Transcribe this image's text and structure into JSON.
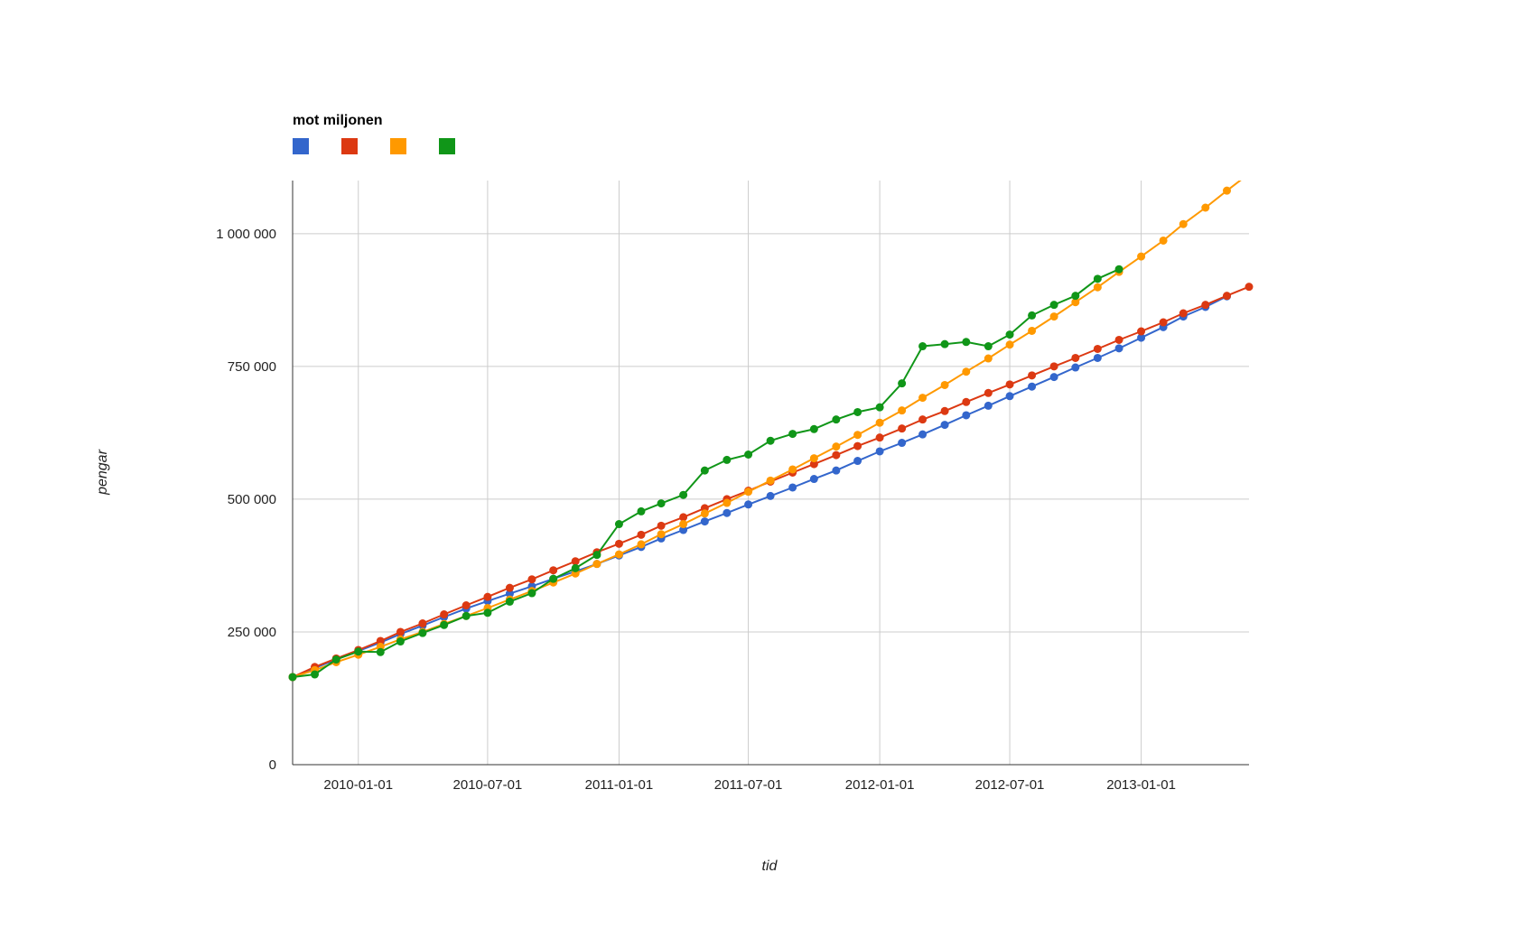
{
  "chart_data": {
    "type": "line",
    "title": "",
    "legend_title": "mot miljonen",
    "legend_placement": "top-left",
    "xlabel": "tid",
    "ylabel": "pengar",
    "grid": true,
    "ylim": [
      0,
      1100000
    ],
    "xlim": [
      "2009-10-01",
      "2013-06-01"
    ],
    "x_tick_labels": [
      "2010-01-01",
      "2010-07-01",
      "2011-01-01",
      "2011-07-01",
      "2012-01-01",
      "2012-07-01",
      "2013-01-01"
    ],
    "y_ticks": [
      0,
      250000,
      500000,
      750000,
      1000000
    ],
    "y_tick_labels": [
      "0",
      "250 000",
      "500 000",
      "750 000",
      "1 000 000"
    ],
    "x": [
      "2009-10-01",
      "2009-11-01",
      "2009-12-01",
      "2010-01-01",
      "2010-02-01",
      "2010-03-01",
      "2010-04-01",
      "2010-05-01",
      "2010-06-01",
      "2010-07-01",
      "2010-08-01",
      "2010-09-01",
      "2010-10-01",
      "2010-11-01",
      "2010-12-01",
      "2011-01-01",
      "2011-02-01",
      "2011-03-01",
      "2011-04-01",
      "2011-05-01",
      "2011-06-01",
      "2011-07-01",
      "2011-08-01",
      "2011-09-01",
      "2011-10-01",
      "2011-11-01",
      "2011-12-01",
      "2012-01-01",
      "2012-02-01",
      "2012-03-01",
      "2012-04-01",
      "2012-05-01",
      "2012-06-01",
      "2012-07-01",
      "2012-08-01",
      "2012-09-01",
      "2012-10-01",
      "2012-11-01",
      "2012-12-01",
      "2013-01-01",
      "2013-02-01",
      "2013-03-01",
      "2013-04-01",
      "2013-05-01",
      "2013-06-01"
    ],
    "series": [
      {
        "color": "#3366cc",
        "values": [
          165000,
          182000,
          198000,
          214000,
          230000,
          246000,
          262000,
          278000,
          294000,
          308000,
          322000,
          336000,
          350000,
          364000,
          378000,
          394000,
          410000,
          426000,
          442000,
          458000,
          474000,
          490000,
          506000,
          522000,
          538000,
          554000,
          572000,
          590000,
          606000,
          622000,
          640000,
          658000,
          676000,
          694000,
          712000,
          730000,
          748000,
          766000,
          784000,
          804000,
          824000,
          844000,
          862000,
          882000,
          null
        ]
      },
      {
        "color": "#dc3912",
        "values": [
          165000,
          184000,
          200000,
          216000,
          233000,
          250000,
          266000,
          283000,
          300000,
          316000,
          333000,
          349000,
          366000,
          383000,
          400000,
          416000,
          433000,
          450000,
          466000,
          483000,
          500000,
          516000,
          533000,
          550000,
          566000,
          583000,
          600000,
          616000,
          633000,
          650000,
          666000,
          683000,
          700000,
          716000,
          733000,
          750000,
          766000,
          783000,
          800000,
          816000,
          833000,
          850000,
          866000,
          883000,
          900000
        ]
      },
      {
        "color": "#ff9900",
        "values": [
          165000,
          178000,
          193000,
          207000,
          222000,
          236000,
          250000,
          265000,
          280000,
          295000,
          311000,
          327000,
          343000,
          360000,
          378000,
          396000,
          415000,
          434000,
          453000,
          473000,
          493000,
          514000,
          535000,
          556000,
          577000,
          599000,
          621000,
          644000,
          667000,
          691000,
          715000,
          740000,
          765000,
          791000,
          817000,
          844000,
          871000,
          899000,
          928000,
          957000,
          987000,
          1018000,
          1049000,
          1081000,
          1113000
        ]
      },
      {
        "color": "#109618",
        "values": [
          165000,
          170000,
          198000,
          213000,
          212000,
          232000,
          248000,
          263000,
          280000,
          286000,
          307000,
          323000,
          350000,
          370000,
          395000,
          453000,
          477000,
          492000,
          508000,
          554000,
          574000,
          584000,
          610000,
          623000,
          632000,
          650000,
          664000,
          673000,
          718000,
          788000,
          792000,
          796000,
          788000,
          810000,
          846000,
          866000,
          883000,
          915000,
          933000,
          null,
          null,
          null,
          null,
          null,
          null
        ]
      }
    ]
  }
}
